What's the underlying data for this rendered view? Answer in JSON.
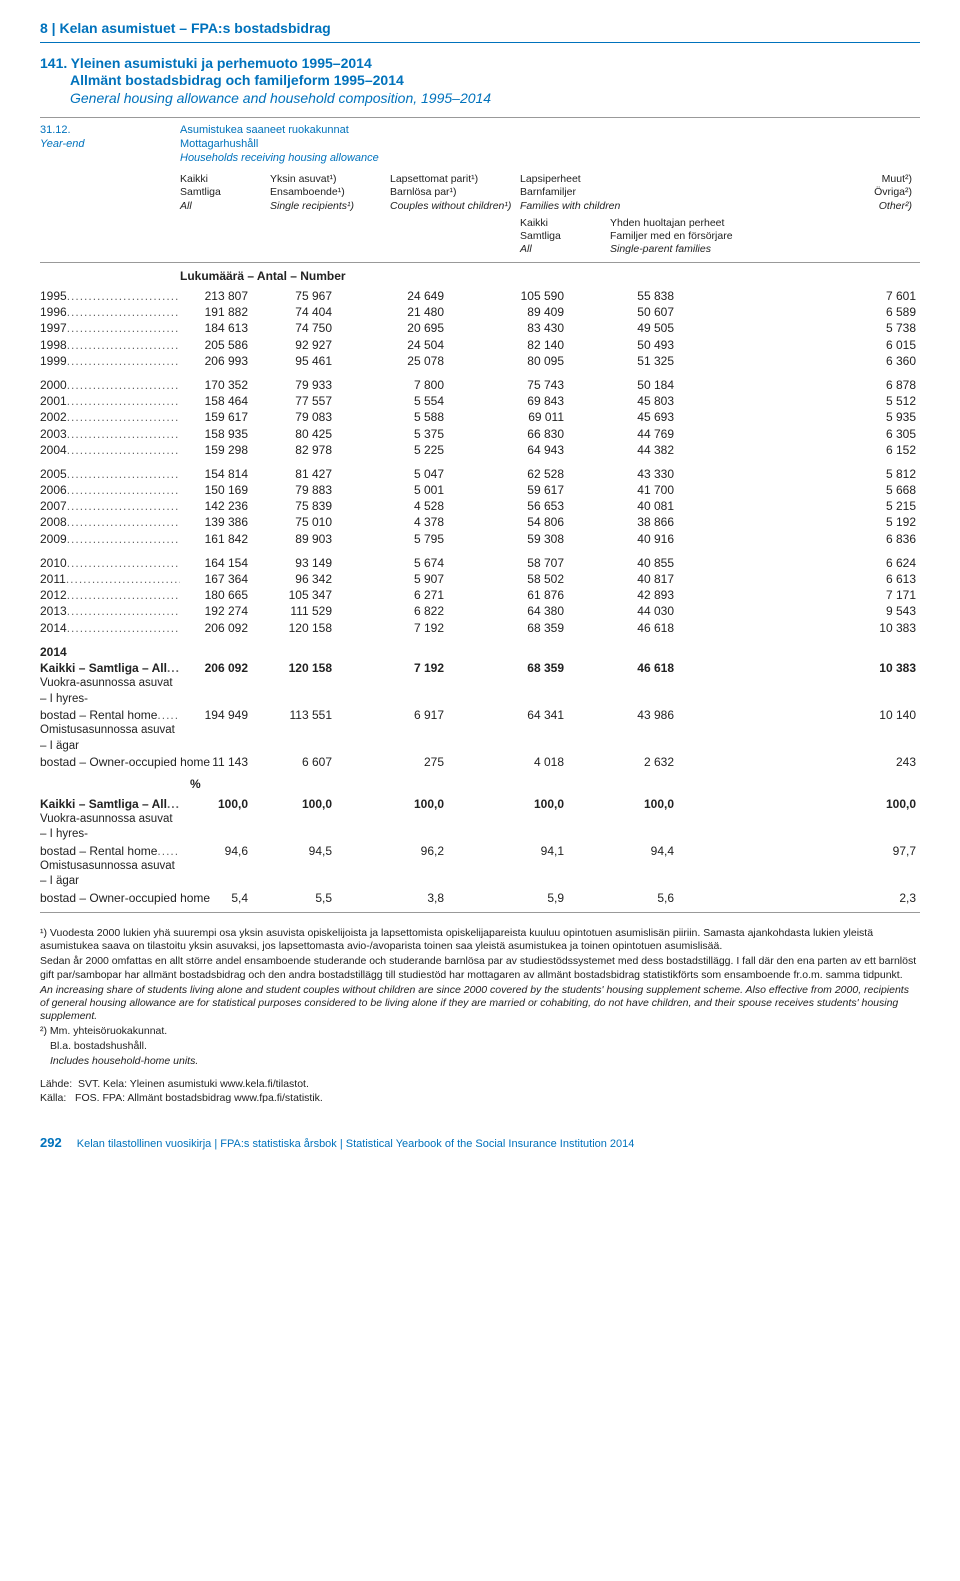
{
  "header": {
    "section": "8 | Kelan asumistuet – FPA:s bostadsbidrag"
  },
  "title": {
    "num": "141.",
    "line1": "Yleinen asumistuki ja perhemuoto 1995–2014",
    "line2": "Allmänt bostadsbidrag och familjeform 1995–2014",
    "line3": "General housing allowance and household composition, 1995–2014"
  },
  "headblock": {
    "yearend_l1": "31.12.",
    "yearend_l2": "Year-end",
    "mottag_l1": "Asumistukea saaneet ruokakunnat",
    "mottag_l2": "Mottagarhushåll",
    "mottag_l3": "Households receiving housing allowance",
    "col1_l1": "Kaikki",
    "col1_l2": "Samtliga",
    "col1_l3": "All",
    "col2_l1": "Yksin asuvat¹)",
    "col2_l2": "Ensamboende¹)",
    "col2_l3": "Single recipients¹)",
    "col3_l1": "Lapsettomat parit¹)",
    "col3_l2": "Barnlösa par¹)",
    "col3_l3": "Couples without children¹)",
    "col4_l1": "Lapsiperheet",
    "col4_l2": "Barnfamiljer",
    "col4_l3": "Families with children",
    "col5_l1": "Muut²)",
    "col5_l2": "Övriga²)",
    "col5_l3": "Other²)",
    "sub1_l1": "Kaikki",
    "sub1_l2": "Samtliga",
    "sub1_l3": "All",
    "sub2_l1": "Yhden huoltajan perheet",
    "sub2_l2": "Familjer med en försörjare",
    "sub2_l3": "Single-parent families"
  },
  "section_number": "Lukumäärä – Antal – Number",
  "groups": [
    [
      {
        "y": "1995",
        "v": [
          "213 807",
          "75 967",
          "24 649",
          "105 590",
          "55 838",
          "7 601"
        ]
      },
      {
        "y": "1996",
        "v": [
          "191 882",
          "74 404",
          "21 480",
          "89 409",
          "50 607",
          "6 589"
        ]
      },
      {
        "y": "1997",
        "v": [
          "184 613",
          "74 750",
          "20 695",
          "83 430",
          "49 505",
          "5 738"
        ]
      },
      {
        "y": "1998",
        "v": [
          "205 586",
          "92 927",
          "24 504",
          "82 140",
          "50 493",
          "6 015"
        ]
      },
      {
        "y": "1999",
        "v": [
          "206 993",
          "95 461",
          "25 078",
          "80 095",
          "51 325",
          "6 360"
        ]
      }
    ],
    [
      {
        "y": "2000",
        "v": [
          "170 352",
          "79 933",
          "7 800",
          "75 743",
          "50 184",
          "6 878"
        ]
      },
      {
        "y": "2001",
        "v": [
          "158 464",
          "77 557",
          "5 554",
          "69 843",
          "45 803",
          "5 512"
        ]
      },
      {
        "y": "2002",
        "v": [
          "159 617",
          "79 083",
          "5 588",
          "69 011",
          "45 693",
          "5 935"
        ]
      },
      {
        "y": "2003",
        "v": [
          "158 935",
          "80 425",
          "5 375",
          "66 830",
          "44 769",
          "6 305"
        ]
      },
      {
        "y": "2004",
        "v": [
          "159 298",
          "82 978",
          "5 225",
          "64 943",
          "44 382",
          "6 152"
        ]
      }
    ],
    [
      {
        "y": "2005",
        "v": [
          "154 814",
          "81 427",
          "5 047",
          "62 528",
          "43 330",
          "5 812"
        ]
      },
      {
        "y": "2006",
        "v": [
          "150 169",
          "79 883",
          "5 001",
          "59 617",
          "41 700",
          "5 668"
        ]
      },
      {
        "y": "2007",
        "v": [
          "142 236",
          "75 839",
          "4 528",
          "56 653",
          "40 081",
          "5 215"
        ]
      },
      {
        "y": "2008",
        "v": [
          "139 386",
          "75 010",
          "4 378",
          "54 806",
          "38 866",
          "5 192"
        ]
      },
      {
        "y": "2009",
        "v": [
          "161 842",
          "89 903",
          "5 795",
          "59 308",
          "40 916",
          "6 836"
        ]
      }
    ],
    [
      {
        "y": "2010",
        "v": [
          "164 154",
          "93 149",
          "5 674",
          "58 707",
          "40 855",
          "6 624"
        ]
      },
      {
        "y": "2011",
        "v": [
          "167 364",
          "96 342",
          "5 907",
          "58 502",
          "40 817",
          "6 613"
        ]
      },
      {
        "y": "2012",
        "v": [
          "180 665",
          "105 347",
          "6 271",
          "61 876",
          "42 893",
          "7 171"
        ]
      },
      {
        "y": "2013",
        "v": [
          "192 274",
          "111 529",
          "6 822",
          "64 380",
          "44 030",
          "9 543"
        ]
      },
      {
        "y": "2014",
        "v": [
          "206 092",
          "120 158",
          "7 192",
          "68 359",
          "46 618",
          "10 383"
        ]
      }
    ]
  ],
  "summary2014": {
    "year": "2014",
    "all_label": "Kaikki – Samtliga – All",
    "all_v": [
      "206 092",
      "120 158",
      "7 192",
      "68 359",
      "46 618",
      "10 383"
    ],
    "rental_l1": "Vuokra-asunnossa asuvat – I hyres-",
    "rental_l2": "bostad – Rental home",
    "rental_v": [
      "194 949",
      "113 551",
      "6 917",
      "64 341",
      "43 986",
      "10 140"
    ],
    "owner_l1": "Omistusasunnossa asuvat – I ägar",
    "owner_l2": "bostad – Owner-occupied home",
    "owner_v": [
      "11 143",
      "6 607",
      "275",
      "4 018",
      "2 632",
      "243"
    ]
  },
  "pct": {
    "label": "%",
    "all_v": [
      "100,0",
      "100,0",
      "100,0",
      "100,0",
      "100,0",
      "100,0"
    ],
    "rental_v": [
      "94,6",
      "94,5",
      "96,2",
      "94,1",
      "94,4",
      "97,7"
    ],
    "owner_v": [
      "5,4",
      "5,5",
      "3,8",
      "5,9",
      "5,6",
      "2,3"
    ]
  },
  "footnotes": {
    "f1a": "¹) Vuodesta 2000 lukien yhä suurempi osa yksin asuvista opiskelijoista ja lapsettomista opiskelijapareista kuuluu opintotuen asumislisän piiriin. Samasta ajankohdasta lukien yleistä asumistukea saava on tilastoitu yksin asuvaksi, jos lapsettomasta avio-/avoparista toinen saa yleistä asumistukea ja toinen opintotuen asumislisää.",
    "f1b": "Sedan år 2000 omfattas en allt större andel ensamboende studerande och studerande barnlösa par av studiestödssystemet med dess bostadstillägg. I fall där den ena parten av ett barnlöst gift par/sambopar har allmänt bostadsbidrag och den andra bostadstillägg till studiestöd har mottagaren av allmänt bostadsbidrag statistikförts som ensamboende fr.o.m. samma tidpunkt.",
    "f1c": "An increasing share of students living alone and student couples without children are since 2000 covered by the students' housing supplement scheme. Also effective from 2000, recipients of general housing allowance are for statistical purposes considered to be living alone if they are married or cohabiting, do not have children, and their spouse receives students' housing supplement.",
    "f2a": "²) Mm. yhteisöruokakunnat.",
    "f2b": "Bl.a. bostadshushåll.",
    "f2c": "Includes household-home units."
  },
  "source": {
    "s1a": "Lähde:",
    "s1b": "SVT. Kela: Yleinen asumistuki www.kela.fi/tilastot.",
    "s2a": "Källa:",
    "s2b": "FOS. FPA: Allmänt bostadsbidrag www.fpa.fi/statistik."
  },
  "footer": {
    "page": "292",
    "text": "Kelan tilastollinen vuosikirja | FPA:s statistiska årsbok | Statistical Yearbook of the Social Insurance Institution 2014"
  }
}
